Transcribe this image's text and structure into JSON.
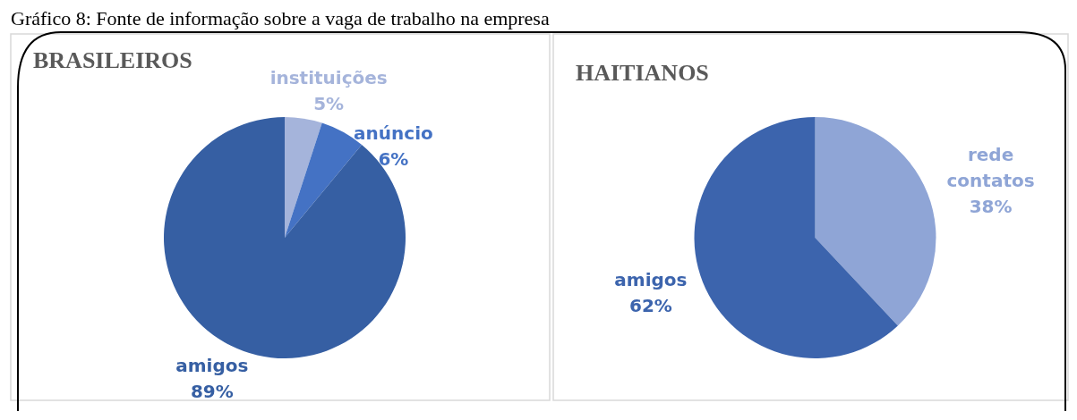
{
  "chart_data": [
    {
      "type": "pie",
      "title": "BRASILEIROS",
      "categories": [
        "instituições",
        "anúncio",
        "amigos"
      ],
      "values": [
        5,
        6,
        89
      ],
      "colors": [
        "#a5b4db",
        "#4472c4",
        "#365fa3"
      ],
      "value_labels": [
        "5%",
        "6%",
        "89%"
      ],
      "annotations": [
        "Gráfico 8: Fonte de informação sobre a vaga de trabalho na empresa"
      ]
    },
    {
      "type": "pie",
      "title": "HAITIANOS",
      "categories": [
        "rede contatos",
        "amigos"
      ],
      "values": [
        38,
        62
      ],
      "colors": [
        "#8fa5d6",
        "#3c64ad"
      ],
      "value_labels": [
        "38%",
        "62%"
      ]
    }
  ]
}
